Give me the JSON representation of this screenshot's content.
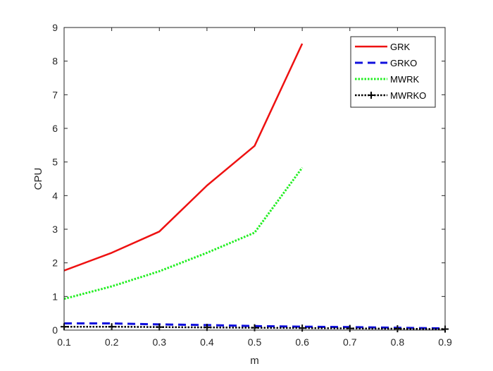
{
  "chart_data": {
    "type": "line",
    "title": "",
    "xlabel": "m",
    "ylabel": "CPU",
    "xlim": [
      0.1,
      0.9
    ],
    "ylim": [
      0,
      9
    ],
    "xticks": [
      0.1,
      0.2,
      0.3,
      0.4,
      0.5,
      0.6,
      0.7,
      0.8,
      0.9
    ],
    "yticks": [
      0,
      1,
      2,
      3,
      4,
      5,
      6,
      7,
      8,
      9
    ],
    "grid": false,
    "legend_position": "top-right",
    "series": [
      {
        "name": "GRK",
        "color": "#ee1111",
        "style": "solid",
        "x": [
          0.1,
          0.2,
          0.3,
          0.4,
          0.5,
          0.6
        ],
        "y": [
          1.77,
          2.3,
          2.93,
          4.3,
          5.48,
          8.52
        ]
      },
      {
        "name": "GRKO",
        "color": "#1010dd",
        "style": "dashed",
        "x": [
          0.1,
          0.2,
          0.3,
          0.4,
          0.5,
          0.6,
          0.7,
          0.8,
          0.9
        ],
        "y": [
          0.2,
          0.2,
          0.17,
          0.15,
          0.12,
          0.1,
          0.09,
          0.07,
          0.05
        ]
      },
      {
        "name": "MWRK",
        "color": "#22ee22",
        "style": "dotted",
        "x": [
          0.1,
          0.2,
          0.3,
          0.4,
          0.5,
          0.6
        ],
        "y": [
          0.93,
          1.3,
          1.75,
          2.3,
          2.9,
          4.83
        ]
      },
      {
        "name": "MWRKO",
        "color": "#000000",
        "style": "dotted-plus",
        "x": [
          0.1,
          0.2,
          0.3,
          0.4,
          0.5,
          0.6,
          0.7,
          0.8,
          0.9
        ],
        "y": [
          0.1,
          0.1,
          0.09,
          0.08,
          0.07,
          0.06,
          0.05,
          0.04,
          0.03
        ]
      }
    ]
  }
}
